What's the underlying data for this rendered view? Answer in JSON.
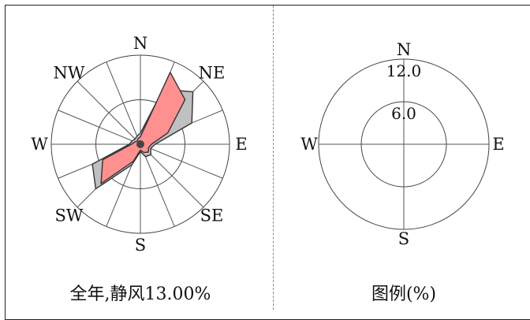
{
  "chart_data": [
    {
      "type": "wind-rose",
      "title": "",
      "caption": "全年,静风13.00%",
      "directions": [
        "N",
        "NNE",
        "NE",
        "ENE",
        "E",
        "ESE",
        "SE",
        "SSE",
        "S",
        "SSW",
        "SW",
        "WSW",
        "W",
        "WNW",
        "NW",
        "NNW"
      ],
      "direction_labels": {
        "N": "N",
        "NE": "NE",
        "E": "E",
        "SE": "SE",
        "S": "S",
        "SW": "SW",
        "W": "W",
        "NW": "NW"
      },
      "rmax": 12.0,
      "rings": [
        6.0,
        12.0
      ],
      "series": [
        {
          "color": "#c0c0c0",
          "values": [
            1.5,
            8.0,
            10.0,
            7.5,
            2.0,
            1.5,
            2.0,
            1.8,
            1.0,
            3.0,
            8.5,
            7.0,
            1.5,
            1.2,
            1.0,
            1.2
          ]
        },
        {
          "color": "#ff9090",
          "values": [
            1.0,
            10.5,
            8.5,
            4.0,
            1.5,
            1.2,
            1.5,
            1.2,
            0.8,
            2.5,
            7.5,
            5.5,
            1.2,
            0.8,
            0.6,
            0.8
          ]
        }
      ]
    },
    {
      "type": "legend",
      "caption": "图例(%)",
      "rmax": 12.0,
      "rings": [
        6.0,
        12.0
      ],
      "ring_labels": [
        "6.0",
        "12.0"
      ],
      "direction_labels": {
        "N": "N",
        "E": "E",
        "S": "S",
        "W": "W"
      }
    }
  ]
}
